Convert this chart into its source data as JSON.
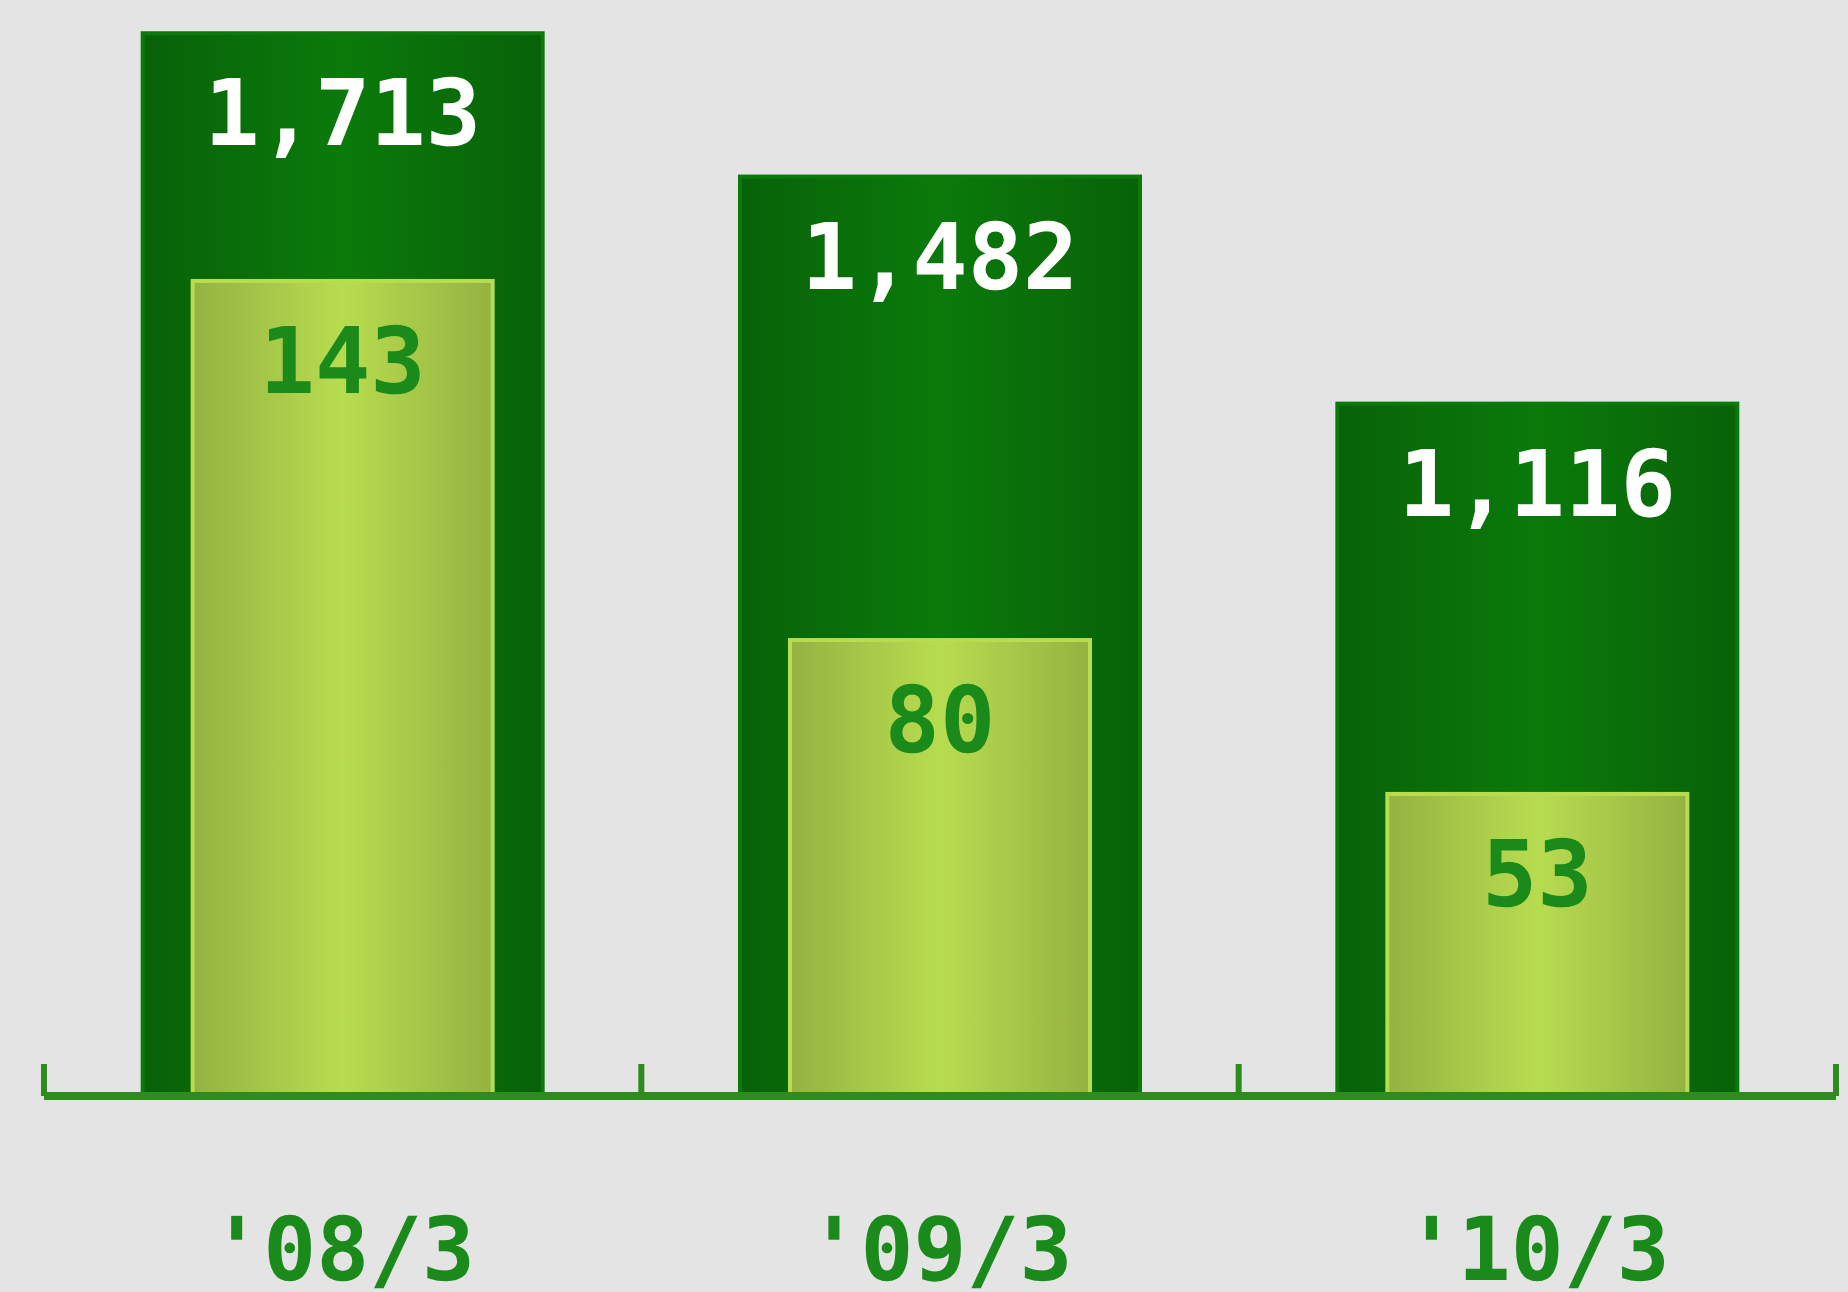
{
  "chart_data": {
    "type": "bar",
    "categories": [
      "'08/3",
      "'09/3",
      "'10/3"
    ],
    "series": [
      {
        "color": "#0a7a0a",
        "values": [
          1713,
          1482,
          1116
        ],
        "value_labels": [
          "1,713",
          "1,482",
          "1,116"
        ]
      },
      {
        "color": "#b8dc50",
        "values": [
          143,
          80,
          53
        ],
        "axis": "y2"
      }
    ],
    "data_labels": true,
    "tick_labels": "x"
  }
}
